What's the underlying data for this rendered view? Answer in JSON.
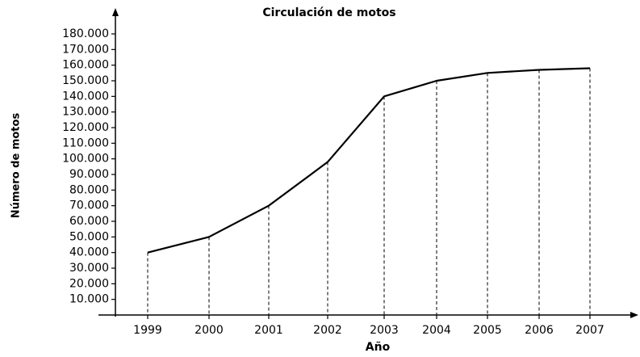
{
  "chart_data": {
    "type": "line",
    "title": "Circulación de motos",
    "y_label": "Número de motos",
    "x_label": "Año",
    "categories": [
      "1999",
      "2000",
      "2001",
      "2002",
      "2003",
      "2004",
      "2005",
      "2006",
      "2007"
    ],
    "values": [
      40000,
      50000,
      70000,
      98000,
      140000,
      150000,
      155000,
      157000,
      158000
    ],
    "color": "#000000",
    "drop_lines": true,
    "ylim": [
      0,
      180000
    ],
    "yticks": [
      {
        "value": 10000,
        "label": "10.000"
      },
      {
        "value": 20000,
        "label": "20.000"
      },
      {
        "value": 30000,
        "label": "30.000"
      },
      {
        "value": 40000,
        "label": "40.000"
      },
      {
        "value": 50000,
        "label": "50.000"
      },
      {
        "value": 60000,
        "label": "60.000"
      },
      {
        "value": 70000,
        "label": "70.000"
      },
      {
        "value": 80000,
        "label": "80.000"
      },
      {
        "value": 90000,
        "label": "90.000"
      },
      {
        "value": 100000,
        "label": "100.000"
      },
      {
        "value": 110000,
        "label": "110.000"
      },
      {
        "value": 120000,
        "label": "120.000"
      },
      {
        "value": 130000,
        "label": "130.000"
      },
      {
        "value": 140000,
        "label": "140.000"
      },
      {
        "value": 150000,
        "label": "150.000"
      },
      {
        "value": 160000,
        "label": "160.000"
      },
      {
        "value": 170000,
        "label": "170.000"
      },
      {
        "value": 180000,
        "label": "180.000"
      }
    ]
  }
}
